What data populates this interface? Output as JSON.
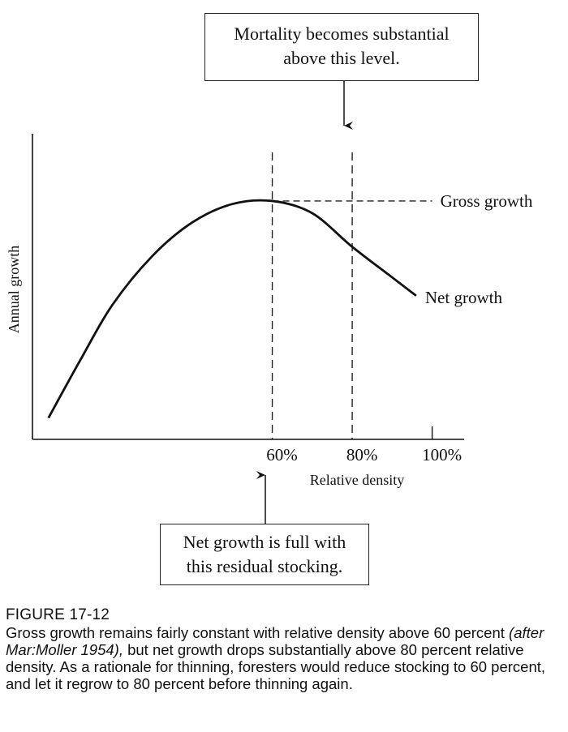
{
  "chart_data": {
    "type": "line",
    "title": "",
    "xlabel": "Relative density",
    "ylabel": "Annual growth",
    "x_ticks": [
      {
        "value": 60,
        "label": "60%"
      },
      {
        "value": 80,
        "label": "80%"
      },
      {
        "value": 100,
        "label": "100%"
      }
    ],
    "xlim": [
      0,
      108
    ],
    "ylim": [
      0,
      100
    ],
    "reference_lines": [
      {
        "x": 60,
        "style": "dashed"
      },
      {
        "x": 80,
        "style": "dashed"
      }
    ],
    "series": [
      {
        "name": "Gross growth",
        "style": "dashed",
        "x": [
          60,
          100
        ],
        "y": [
          78,
          78
        ]
      },
      {
        "name": "Net growth",
        "style": "solid",
        "x": [
          4,
          12,
          20,
          30,
          40,
          50,
          60,
          70,
          80,
          90,
          96
        ],
        "y": [
          7,
          26,
          44,
          60,
          71,
          77,
          78,
          74,
          63,
          53,
          47
        ]
      }
    ],
    "grid": false,
    "legend": "none"
  },
  "annotations": {
    "top_callout": [
      "Mortality becomes substantial",
      "above this level."
    ],
    "bottom_callout": [
      "Net growth is full with",
      "this residual stocking."
    ]
  },
  "caption": {
    "title": "FIGURE 17-12",
    "text_before": "Gross growth remains fairly constant with relative density above 60 percent ",
    "citation": "(after Mar:Moller 1954),",
    "text_after": " but net growth drops substantially above 80 percent relative density. As a rationale for thinning, foresters would reduce stocking to 60 percent, and let it regrow to 80 percent before thinning again."
  }
}
